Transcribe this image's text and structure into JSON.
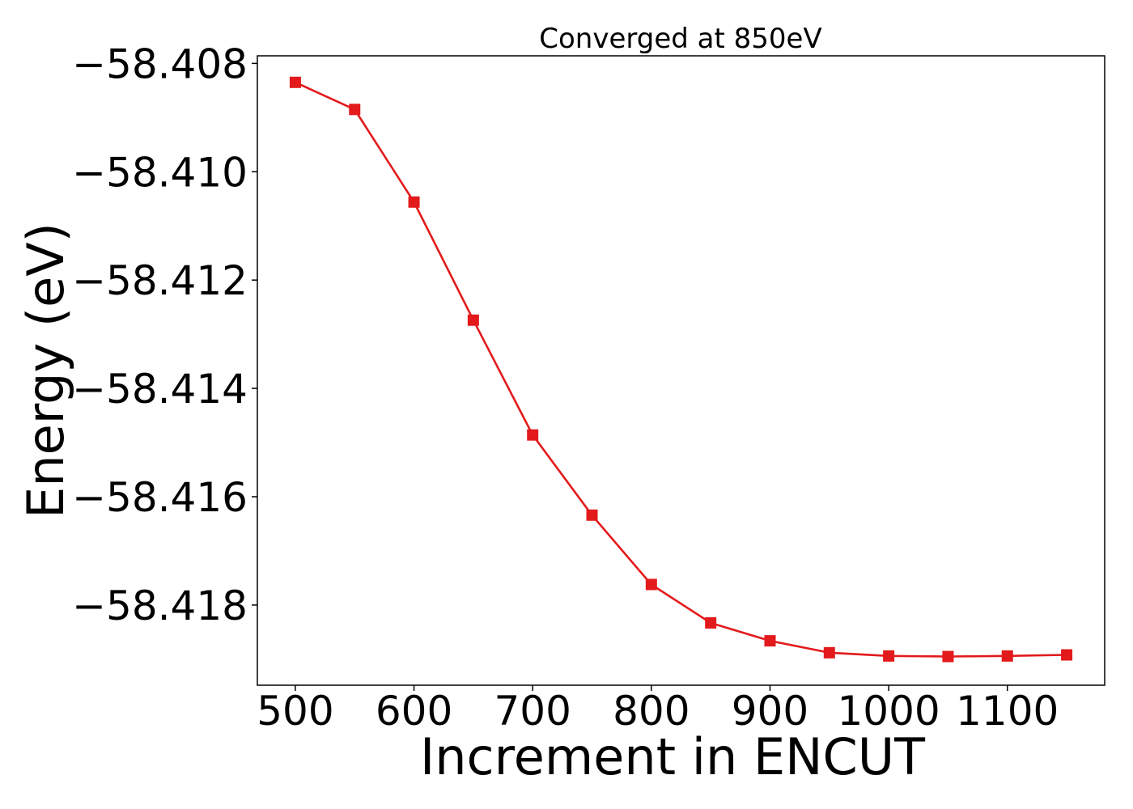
{
  "chart_data": {
    "type": "line",
    "title": "Converged at 850eV",
    "xlabel": "Increment in ENCUT",
    "ylabel": "Energy (eV)",
    "xlim": [
      468,
      1182
    ],
    "ylim": [
      -58.41948,
      -58.40786
    ],
    "xticks": [
      500,
      600,
      700,
      800,
      900,
      1000,
      1100
    ],
    "xtick_labels": [
      "500",
      "600",
      "700",
      "800",
      "900",
      "1000",
      "1100"
    ],
    "yticks": [
      -58.408,
      -58.41,
      -58.412,
      -58.414,
      -58.416,
      -58.418
    ],
    "ytick_labels": [
      "−58.408",
      "−58.410",
      "−58.412",
      "−58.414",
      "−58.416",
      "−58.418"
    ],
    "grid": false,
    "series": [
      {
        "color": "#e31a1c",
        "marker": "square",
        "x": [
          500,
          550,
          600,
          650,
          700,
          750,
          800,
          850,
          900,
          950,
          1000,
          1050,
          1100,
          1150
        ],
        "y": [
          -58.40835,
          -58.40885,
          -58.41056,
          -58.41274,
          -58.41486,
          -58.41634,
          -58.41762,
          -58.41833,
          -58.41866,
          -58.41888,
          -58.41894,
          -58.41895,
          -58.41894,
          -58.41892
        ]
      }
    ]
  }
}
